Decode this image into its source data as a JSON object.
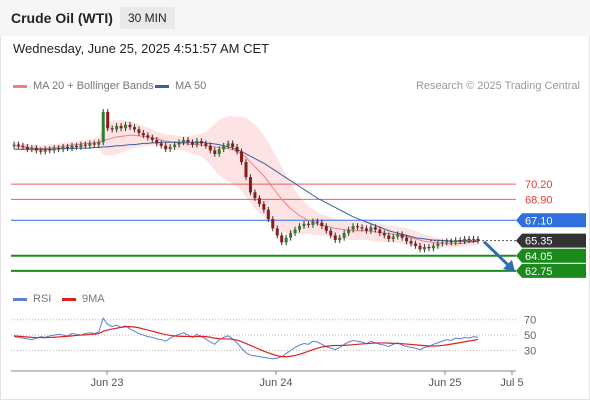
{
  "header": {
    "title": "Crude Oil (WTI)",
    "interval": "30 MIN"
  },
  "datetime": "Wednesday, June 25, 2025 4:51:57 AM CET",
  "legend": {
    "ma20": {
      "label": "MA 20 + Bollinger Bands",
      "color": "#f08080"
    },
    "ma50": {
      "label": "MA 50",
      "color": "#3a5fa0"
    }
  },
  "credit": "Research © 2025 Trading Central",
  "rsi_legend": {
    "rsi": {
      "label": "RSI",
      "color": "#5b7fd6"
    },
    "ma9": {
      "label": "9MA",
      "color": "#e02020"
    }
  },
  "chart_data": {
    "type": "candlestick",
    "instrument": "Crude Oil (WTI)",
    "timeframe": "30 MIN",
    "x_ticks": [
      "Jun 23",
      "Jun 24",
      "Jun 25",
      "Jul 5"
    ],
    "price_range": [
      61.8,
      77.6
    ],
    "levels": [
      {
        "value": 70.2,
        "label": "70.20",
        "kind": "resistance",
        "color": "#e53935"
      },
      {
        "value": 68.9,
        "label": "68.90",
        "kind": "resistance",
        "color": "#e53935"
      },
      {
        "value": 67.1,
        "label": "67.10",
        "kind": "pivot",
        "color": "#2f6fe0"
      },
      {
        "value": 65.35,
        "label": "65.35",
        "kind": "last",
        "color": "#333333"
      },
      {
        "value": 64.05,
        "label": "64.05",
        "kind": "support",
        "color": "#1e8a1e"
      },
      {
        "value": 62.75,
        "label": "62.75",
        "kind": "support",
        "color": "#1e8a1e"
      }
    ],
    "candles_close": [
      73.6,
      73.5,
      73.4,
      73.2,
      73.3,
      73.1,
      73.0,
      73.2,
      73.1,
      73.3,
      73.2,
      73.4,
      73.3,
      73.5,
      73.4,
      73.6,
      73.5,
      73.7,
      73.6,
      73.8,
      76.4,
      75.0,
      74.9,
      75.2,
      75.0,
      75.3,
      75.1,
      74.9,
      74.6,
      74.4,
      74.2,
      74.0,
      73.7,
      73.5,
      73.2,
      73.4,
      73.6,
      73.8,
      74.0,
      73.8,
      73.6,
      73.9,
      73.7,
      73.5,
      73.1,
      72.8,
      73.2,
      73.5,
      73.7,
      73.4,
      73.0,
      72.1,
      70.8,
      69.5,
      69.0,
      68.5,
      68.0,
      67.2,
      66.4,
      65.8,
      65.2,
      65.6,
      66.0,
      66.3,
      66.6,
      66.8,
      66.7,
      67.0,
      66.9,
      66.6,
      66.2,
      65.8,
      65.4,
      65.6,
      66.0,
      66.3,
      66.6,
      66.5,
      66.4,
      66.2,
      66.5,
      66.3,
      66.0,
      65.8,
      65.5,
      65.7,
      65.9,
      65.6,
      65.3,
      65.1,
      64.9,
      64.6,
      64.8,
      64.7,
      64.9,
      65.1,
      65.2,
      65.3,
      65.2,
      65.4,
      65.3,
      65.5,
      65.4,
      65.5,
      65.35
    ],
    "ma20": [
      73.5,
      73.45,
      73.4,
      73.35,
      73.3,
      73.3,
      73.25,
      73.25,
      73.3,
      73.35,
      73.4,
      73.45,
      73.5,
      73.55,
      73.6,
      73.65,
      73.7,
      73.7,
      73.75,
      73.8,
      73.95,
      74.05,
      74.15,
      74.25,
      74.3,
      74.35,
      74.4,
      74.4,
      74.35,
      74.3,
      74.25,
      74.2,
      74.1,
      74.0,
      73.9,
      73.85,
      73.8,
      73.75,
      73.7,
      73.65,
      73.6,
      73.6,
      73.55,
      73.5,
      73.45,
      73.4,
      73.35,
      73.3,
      73.25,
      73.15,
      73.0,
      72.8,
      72.5,
      72.1,
      71.7,
      71.3,
      70.9,
      70.4,
      69.9,
      69.4,
      68.9,
      68.5,
      68.1,
      67.8,
      67.5,
      67.3,
      67.1,
      66.95,
      66.8,
      66.7,
      66.6,
      66.5,
      66.4,
      66.35,
      66.3,
      66.25,
      66.2,
      66.2,
      66.2,
      66.2,
      66.15,
      66.1,
      66.05,
      66.0,
      65.95,
      65.9,
      65.85,
      65.8,
      65.7,
      65.6,
      65.5,
      65.4,
      65.3,
      65.25,
      65.2,
      65.15,
      65.15,
      65.1,
      65.1,
      65.1,
      65.1,
      65.15,
      65.2,
      65.25,
      65.3
    ],
    "bb_width": [
      0.3,
      0.3,
      0.3,
      0.3,
      0.3,
      0.3,
      0.3,
      0.3,
      0.3,
      0.3,
      0.3,
      0.3,
      0.3,
      0.3,
      0.3,
      0.3,
      0.3,
      0.35,
      0.4,
      0.5,
      1.2,
      1.4,
      1.5,
      1.5,
      1.4,
      1.3,
      1.2,
      1.1,
      1.0,
      0.9,
      0.8,
      0.7,
      0.6,
      0.6,
      0.6,
      0.6,
      0.6,
      0.6,
      0.6,
      0.7,
      0.8,
      0.9,
      1.0,
      1.2,
      1.6,
      2.0,
      2.4,
      2.6,
      2.8,
      2.9,
      3.0,
      3.2,
      3.4,
      3.5,
      3.6,
      3.6,
      3.5,
      3.4,
      3.2,
      3.0,
      2.8,
      2.5,
      2.2,
      1.9,
      1.6,
      1.4,
      1.2,
      1.1,
      1.0,
      0.9,
      0.9,
      0.85,
      0.8,
      0.8,
      0.8,
      0.8,
      0.8,
      0.8,
      0.8,
      0.8,
      0.8,
      0.8,
      0.8,
      0.75,
      0.7,
      0.7,
      0.7,
      0.7,
      0.7,
      0.7,
      0.7,
      0.65,
      0.6,
      0.55,
      0.5,
      0.45,
      0.4,
      0.35,
      0.3,
      0.3,
      0.3,
      0.3,
      0.3,
      0.3,
      0.3
    ],
    "ma50": [
      73.2,
      73.2,
      73.2,
      73.2,
      73.2,
      73.2,
      73.2,
      73.2,
      73.2,
      73.2,
      73.25,
      73.25,
      73.25,
      73.25,
      73.3,
      73.3,
      73.3,
      73.3,
      73.35,
      73.35,
      73.4,
      73.4,
      73.45,
      73.5,
      73.5,
      73.55,
      73.6,
      73.6,
      73.65,
      73.7,
      73.7,
      73.75,
      73.75,
      73.8,
      73.8,
      73.8,
      73.8,
      73.8,
      73.8,
      73.8,
      73.8,
      73.8,
      73.8,
      73.75,
      73.7,
      73.65,
      73.6,
      73.5,
      73.4,
      73.3,
      73.15,
      73.0,
      72.8,
      72.6,
      72.4,
      72.2,
      72.0,
      71.75,
      71.5,
      71.25,
      71.0,
      70.75,
      70.5,
      70.25,
      70.0,
      69.75,
      69.5,
      69.25,
      69.0,
      68.8,
      68.6,
      68.4,
      68.2,
      68.0,
      67.8,
      67.6,
      67.4,
      67.25,
      67.1,
      66.95,
      66.8,
      66.65,
      66.5,
      66.35,
      66.2,
      66.1,
      66.0,
      65.9,
      65.8,
      65.7,
      65.6,
      65.55,
      65.5,
      65.45,
      65.4,
      65.4,
      65.35,
      65.35,
      65.3,
      65.3,
      65.3,
      65.3,
      65.3,
      65.3,
      65.3
    ],
    "forecast_arrow": {
      "from": 65.35,
      "to": 62.75,
      "color": "#2f6fb0"
    },
    "rsi": {
      "levels": [
        70,
        50,
        30
      ],
      "range": [
        15,
        80
      ],
      "values": [
        48,
        47,
        46,
        45,
        44,
        46,
        48,
        47,
        49,
        50,
        51,
        50,
        49,
        52,
        51,
        50,
        52,
        53,
        52,
        54,
        72,
        64,
        61,
        63,
        60,
        62,
        58,
        55,
        52,
        50,
        48,
        47,
        45,
        44,
        42,
        46,
        49,
        51,
        53,
        50,
        47,
        51,
        48,
        45,
        41,
        38,
        44,
        47,
        49,
        45,
        40,
        33,
        27,
        24,
        23,
        22,
        21,
        20,
        19,
        20,
        22,
        26,
        30,
        34,
        37,
        39,
        38,
        42,
        41,
        38,
        35,
        33,
        31,
        34,
        38,
        41,
        43,
        42,
        41,
        39,
        42,
        40,
        38,
        37,
        35,
        38,
        40,
        37,
        35,
        34,
        33,
        31,
        34,
        35,
        38,
        40,
        42,
        44,
        43,
        46,
        45,
        47,
        46,
        48,
        47
      ],
      "ma9": [
        49,
        48.5,
        48,
        47.5,
        47,
        46.8,
        46.8,
        46.7,
        46.9,
        47.2,
        47.6,
        48,
        48.4,
        49,
        49.5,
        50,
        50.3,
        50.8,
        51.2,
        52,
        55,
        56.5,
        57.8,
        59,
        60,
        60.8,
        61,
        60.5,
        59.5,
        58,
        56.5,
        55,
        53.5,
        52,
        50.5,
        49.5,
        48.8,
        48.5,
        48.3,
        48.2,
        48,
        48.2,
        48.3,
        48,
        47.2,
        46,
        45.3,
        45,
        45,
        44.5,
        43.5,
        41.5,
        39,
        36.5,
        34,
        31.5,
        29,
        27,
        25,
        23.2,
        22,
        22,
        22.5,
        23.5,
        25,
        27,
        29,
        31,
        33,
        34.5,
        35.5,
        36.2,
        36.5,
        36.5,
        36.6,
        37,
        37.5,
        38,
        38.5,
        38.8,
        39.3,
        39.6,
        39.8,
        39.8,
        39.5,
        39.2,
        39,
        38.7,
        38.3,
        37.8,
        37.3,
        36.8,
        36.3,
        35.9,
        35.8,
        36,
        36.5,
        37.3,
        38.2,
        39.2,
        40.2,
        41.3,
        42.3,
        43.3,
        44.3
      ]
    }
  }
}
